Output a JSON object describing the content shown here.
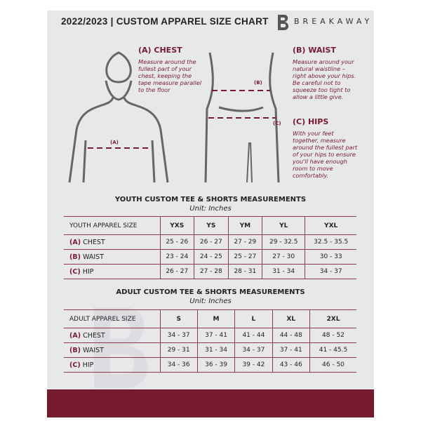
{
  "header": {
    "title": "2022/2023 | CUSTOM APPAREL SIZE CHART",
    "brand": "BREAKAWAY"
  },
  "guide": {
    "chest": {
      "heading": "(A) CHEST",
      "text": "Measure around the fullest part of your chest, keeping the tape measure parallel to the floor",
      "marker": "(A)"
    },
    "waist": {
      "heading": "(B) WAIST",
      "text": "Measure around your natural waistline – right above your hips. Be careful not to squeeze too tight to allow a little give.",
      "marker": "(B)"
    },
    "hips": {
      "heading": "(C) HIPS",
      "text": "With your feet together, measure around the fullest part of your hips to ensure you'll have enough room to move comfortably.",
      "marker": "(C)"
    }
  },
  "youth": {
    "title": "YOUTH CUSTOM TEE & SHORTS MEASUREMENTS",
    "unit": "Unit: Inches",
    "header": [
      "YOUTH APPAREL SIZE",
      "YXS",
      "YS",
      "YM",
      "YL",
      "YXL"
    ],
    "rows": [
      {
        "code": "(A)",
        "label": "CHEST",
        "values": [
          "25 - 26",
          "26 - 27",
          "27 - 29",
          "29 - 32.5",
          "32.5 - 35.5"
        ]
      },
      {
        "code": "(B)",
        "label": "WAIST",
        "values": [
          "23 - 24",
          "24 - 25",
          "25 - 27",
          "27 - 30",
          "30 - 33"
        ]
      },
      {
        "code": "(C)",
        "label": "HIP",
        "values": [
          "26 - 27",
          "27 - 28",
          "28 - 31",
          "31 - 34",
          "34 - 37"
        ]
      }
    ]
  },
  "adult": {
    "title": "ADULT CUSTOM TEE & SHORTS MEASUREMENTS",
    "unit": "Unit: Inches",
    "header": [
      "ADULT APPAREL SIZE",
      "S",
      "M",
      "L",
      "XL",
      "2XL"
    ],
    "rows": [
      {
        "code": "(A)",
        "label": "CHEST",
        "values": [
          "34 - 37",
          "37 - 41",
          "41 - 44",
          "44 - 48",
          "48 - 52"
        ]
      },
      {
        "code": "(B)",
        "label": "WAIST",
        "values": [
          "29 - 31",
          "31 - 34",
          "34 - 37",
          "37 - 41",
          "41 - 45.5"
        ]
      },
      {
        "code": "(C)",
        "label": "HIP",
        "values": [
          "34 - 36",
          "36 - 39",
          "39 - 42",
          "43 - 46",
          "46 - 50"
        ]
      }
    ]
  },
  "colors": {
    "accent": "#761a30",
    "panel": "#e7e8ea"
  }
}
